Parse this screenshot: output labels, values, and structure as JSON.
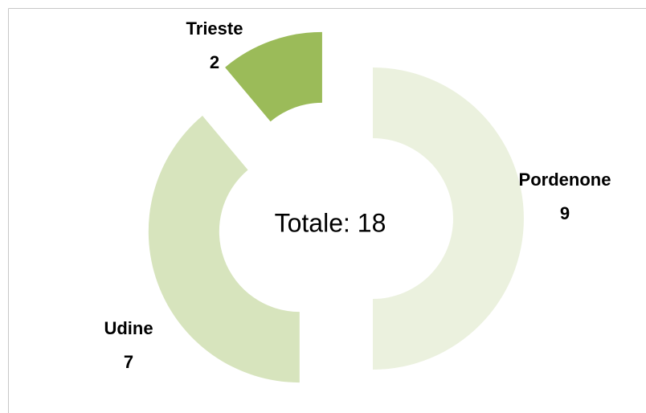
{
  "chart_data": {
    "type": "donut",
    "center_label": "Totale: 18",
    "categories": [
      "Pordenone",
      "Udine",
      "Trieste"
    ],
    "values": [
      9,
      7,
      2
    ],
    "colors": [
      "#ebf1de",
      "#d7e4bd",
      "#9bbb59"
    ],
    "exploded": true
  }
}
